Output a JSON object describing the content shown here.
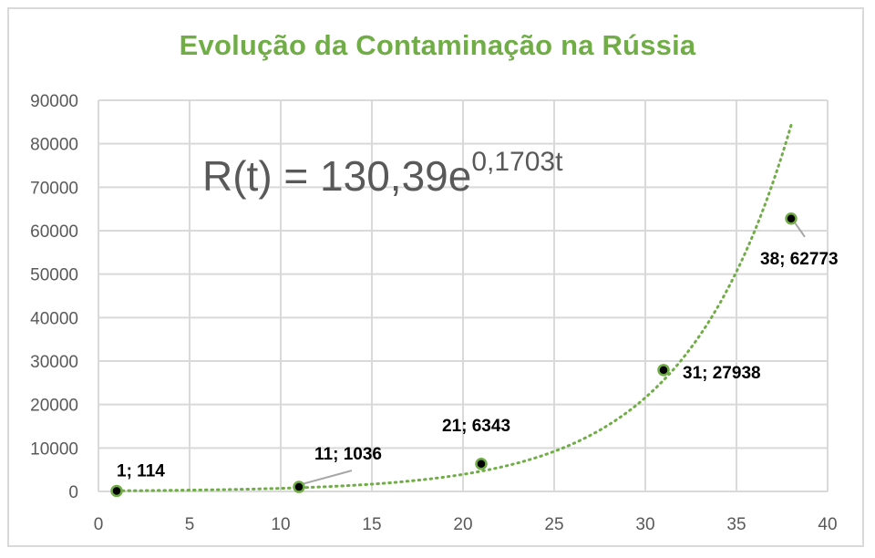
{
  "chart_data": {
    "type": "scatter",
    "title": "Evolução da Contaminação na Rússia",
    "xlabel": "",
    "ylabel": "",
    "xlim": [
      0,
      40
    ],
    "ylim": [
      0,
      90000
    ],
    "x_ticks": [
      "0",
      "5",
      "10",
      "15",
      "20",
      "25",
      "30",
      "35",
      "40"
    ],
    "y_ticks": [
      "0",
      "10000",
      "20000",
      "30000",
      "40000",
      "50000",
      "60000",
      "70000",
      "80000",
      "90000"
    ],
    "points": [
      {
        "x": 1,
        "y": 114,
        "label": "1; 114"
      },
      {
        "x": 11,
        "y": 1036,
        "label": "11; 1036"
      },
      {
        "x": 21,
        "y": 6343,
        "label": "21; 6343"
      },
      {
        "x": 31,
        "y": 27938,
        "label": "31; 27938"
      },
      {
        "x": 38,
        "y": 62773,
        "label": "38; 62773"
      }
    ],
    "trendline": {
      "type": "exponential",
      "a": 130.39,
      "b": 0.1703,
      "x_range": [
        1,
        38
      ],
      "color": "#70ad47",
      "equation_base": "R(t) = 130,39e",
      "equation_exponent": "0,1703t"
    },
    "grid": true,
    "marker_color": "#000000",
    "marker_edge_color": "#70ad47",
    "title_color": "#70ad47"
  }
}
